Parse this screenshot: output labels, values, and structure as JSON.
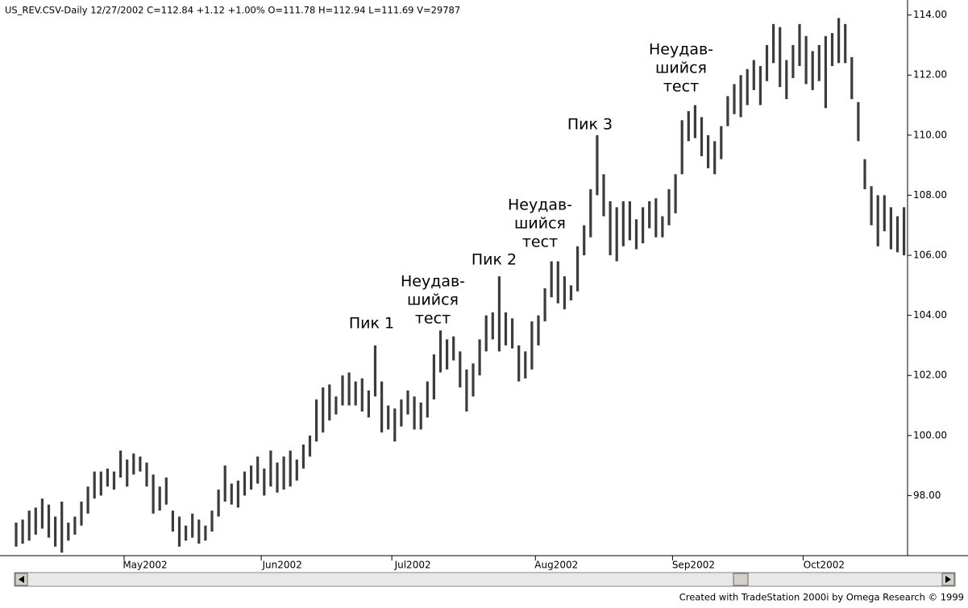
{
  "chart_data": {
    "type": "ohlc",
    "title": "US_REV.CSV-Daily  12/27/2002  C=112.84  +1.12  +1.00%  O=111.78  H=112.94  L=111.69  V=29787",
    "footer": "Created with TradeStation 2000i by Omega Research © 1999",
    "color": "#3c3c3c",
    "ylim": [
      96,
      114.5
    ],
    "yticks": [
      {
        "value": 98,
        "label": "98.00"
      },
      {
        "value": 100,
        "label": "100.00"
      },
      {
        "value": 102,
        "label": "102.00"
      },
      {
        "value": 104,
        "label": "104.00"
      },
      {
        "value": 106,
        "label": "106.00"
      },
      {
        "value": 108,
        "label": "108.00"
      },
      {
        "value": 110,
        "label": "110.00"
      },
      {
        "value": 112,
        "label": "112.00"
      },
      {
        "value": 114,
        "label": "114.00"
      }
    ],
    "xticks": [
      {
        "value": 20,
        "label": "May2002"
      },
      {
        "value": 41,
        "label": "Jun2002"
      },
      {
        "value": 61,
        "label": "Jul2002"
      },
      {
        "value": 83,
        "label": "Aug2002"
      },
      {
        "value": 104,
        "label": "Sep2002"
      },
      {
        "value": 124,
        "label": "Oct2002"
      }
    ],
    "high": [
      97.1,
      97.2,
      97.5,
      97.6,
      97.9,
      97.7,
      97.3,
      97.8,
      97.1,
      97.3,
      97.8,
      98.3,
      98.8,
      98.8,
      98.9,
      98.8,
      99.5,
      99.2,
      99.4,
      99.3,
      99.1,
      98.7,
      98.3,
      98.6,
      97.5,
      97.3,
      97.0,
      97.4,
      97.2,
      97.0,
      97.5,
      98.2,
      99.0,
      98.4,
      98.5,
      98.8,
      99.0,
      99.3,
      98.9,
      99.5,
      99.1,
      99.3,
      99.5,
      99.2,
      99.7,
      100.0,
      101.2,
      101.6,
      101.7,
      101.3,
      102.0,
      102.1,
      101.8,
      101.9,
      101.5,
      103.0,
      101.8,
      101.0,
      100.9,
      101.2,
      101.5,
      101.3,
      101.1,
      101.8,
      102.7,
      103.5,
      103.2,
      103.3,
      102.8,
      102.2,
      102.4,
      103.2,
      104.0,
      104.1,
      105.3,
      104.1,
      103.9,
      103.0,
      102.8,
      103.8,
      104.0,
      104.9,
      105.8,
      105.8,
      105.3,
      105.0,
      106.3,
      107.0,
      108.2,
      110.0,
      108.7,
      107.8,
      107.6,
      107.8,
      107.8,
      107.2,
      107.6,
      107.8,
      107.9,
      107.3,
      108.2,
      108.7,
      110.5,
      110.8,
      111.0,
      110.6,
      110.0,
      109.8,
      110.3,
      111.3,
      111.7,
      112.0,
      112.2,
      112.5,
      112.3,
      113.0,
      113.7,
      113.6,
      112.5,
      113.0,
      113.7,
      113.3,
      112.8,
      113.0,
      113.3,
      113.4,
      113.9,
      113.7,
      112.6,
      111.1,
      109.2,
      108.3,
      108.0,
      108.0,
      107.6,
      107.3,
      107.6
    ],
    "low": [
      96.3,
      96.4,
      96.5,
      96.7,
      96.9,
      96.6,
      96.3,
      96.1,
      96.5,
      96.7,
      97.0,
      97.4,
      97.9,
      98.0,
      98.3,
      98.2,
      98.6,
      98.3,
      98.7,
      98.8,
      98.3,
      97.4,
      97.5,
      97.7,
      96.8,
      96.3,
      96.5,
      96.6,
      96.4,
      96.5,
      96.8,
      97.3,
      97.8,
      97.7,
      97.6,
      98.0,
      98.2,
      98.4,
      98.0,
      98.3,
      98.1,
      98.2,
      98.3,
      98.5,
      98.9,
      99.3,
      99.8,
      100.1,
      100.5,
      100.7,
      101.0,
      101.0,
      101.0,
      100.8,
      100.6,
      101.3,
      100.1,
      100.2,
      99.8,
      100.3,
      100.7,
      100.2,
      100.2,
      100.6,
      101.2,
      102.1,
      102.2,
      102.5,
      101.6,
      100.8,
      101.3,
      102.0,
      102.8,
      103.2,
      102.8,
      103.0,
      102.9,
      101.8,
      101.9,
      102.2,
      103.0,
      103.8,
      104.6,
      104.4,
      104.2,
      104.5,
      104.8,
      106.0,
      106.6,
      108.0,
      107.3,
      106.0,
      105.8,
      106.3,
      106.5,
      106.2,
      106.4,
      106.9,
      106.6,
      106.6,
      107.0,
      107.4,
      108.7,
      109.8,
      109.9,
      109.3,
      108.9,
      108.7,
      109.2,
      110.3,
      110.7,
      110.6,
      111.0,
      111.5,
      111.0,
      111.8,
      112.4,
      111.6,
      111.2,
      111.9,
      112.3,
      111.7,
      111.5,
      111.8,
      110.9,
      112.3,
      112.4,
      112.4,
      111.2,
      109.8,
      108.2,
      107.0,
      106.3,
      106.8,
      106.2,
      106.1,
      106.0
    ],
    "annotations": [
      [
        "Пик 1"
      ],
      [
        "Неудав-",
        "шийся",
        "тест"
      ],
      [
        "Пик 2"
      ],
      [
        "Неудав-",
        "шийся",
        "тест"
      ],
      [
        "Пик 3"
      ],
      [
        "Неудав-",
        "шийся",
        "тест"
      ]
    ]
  }
}
